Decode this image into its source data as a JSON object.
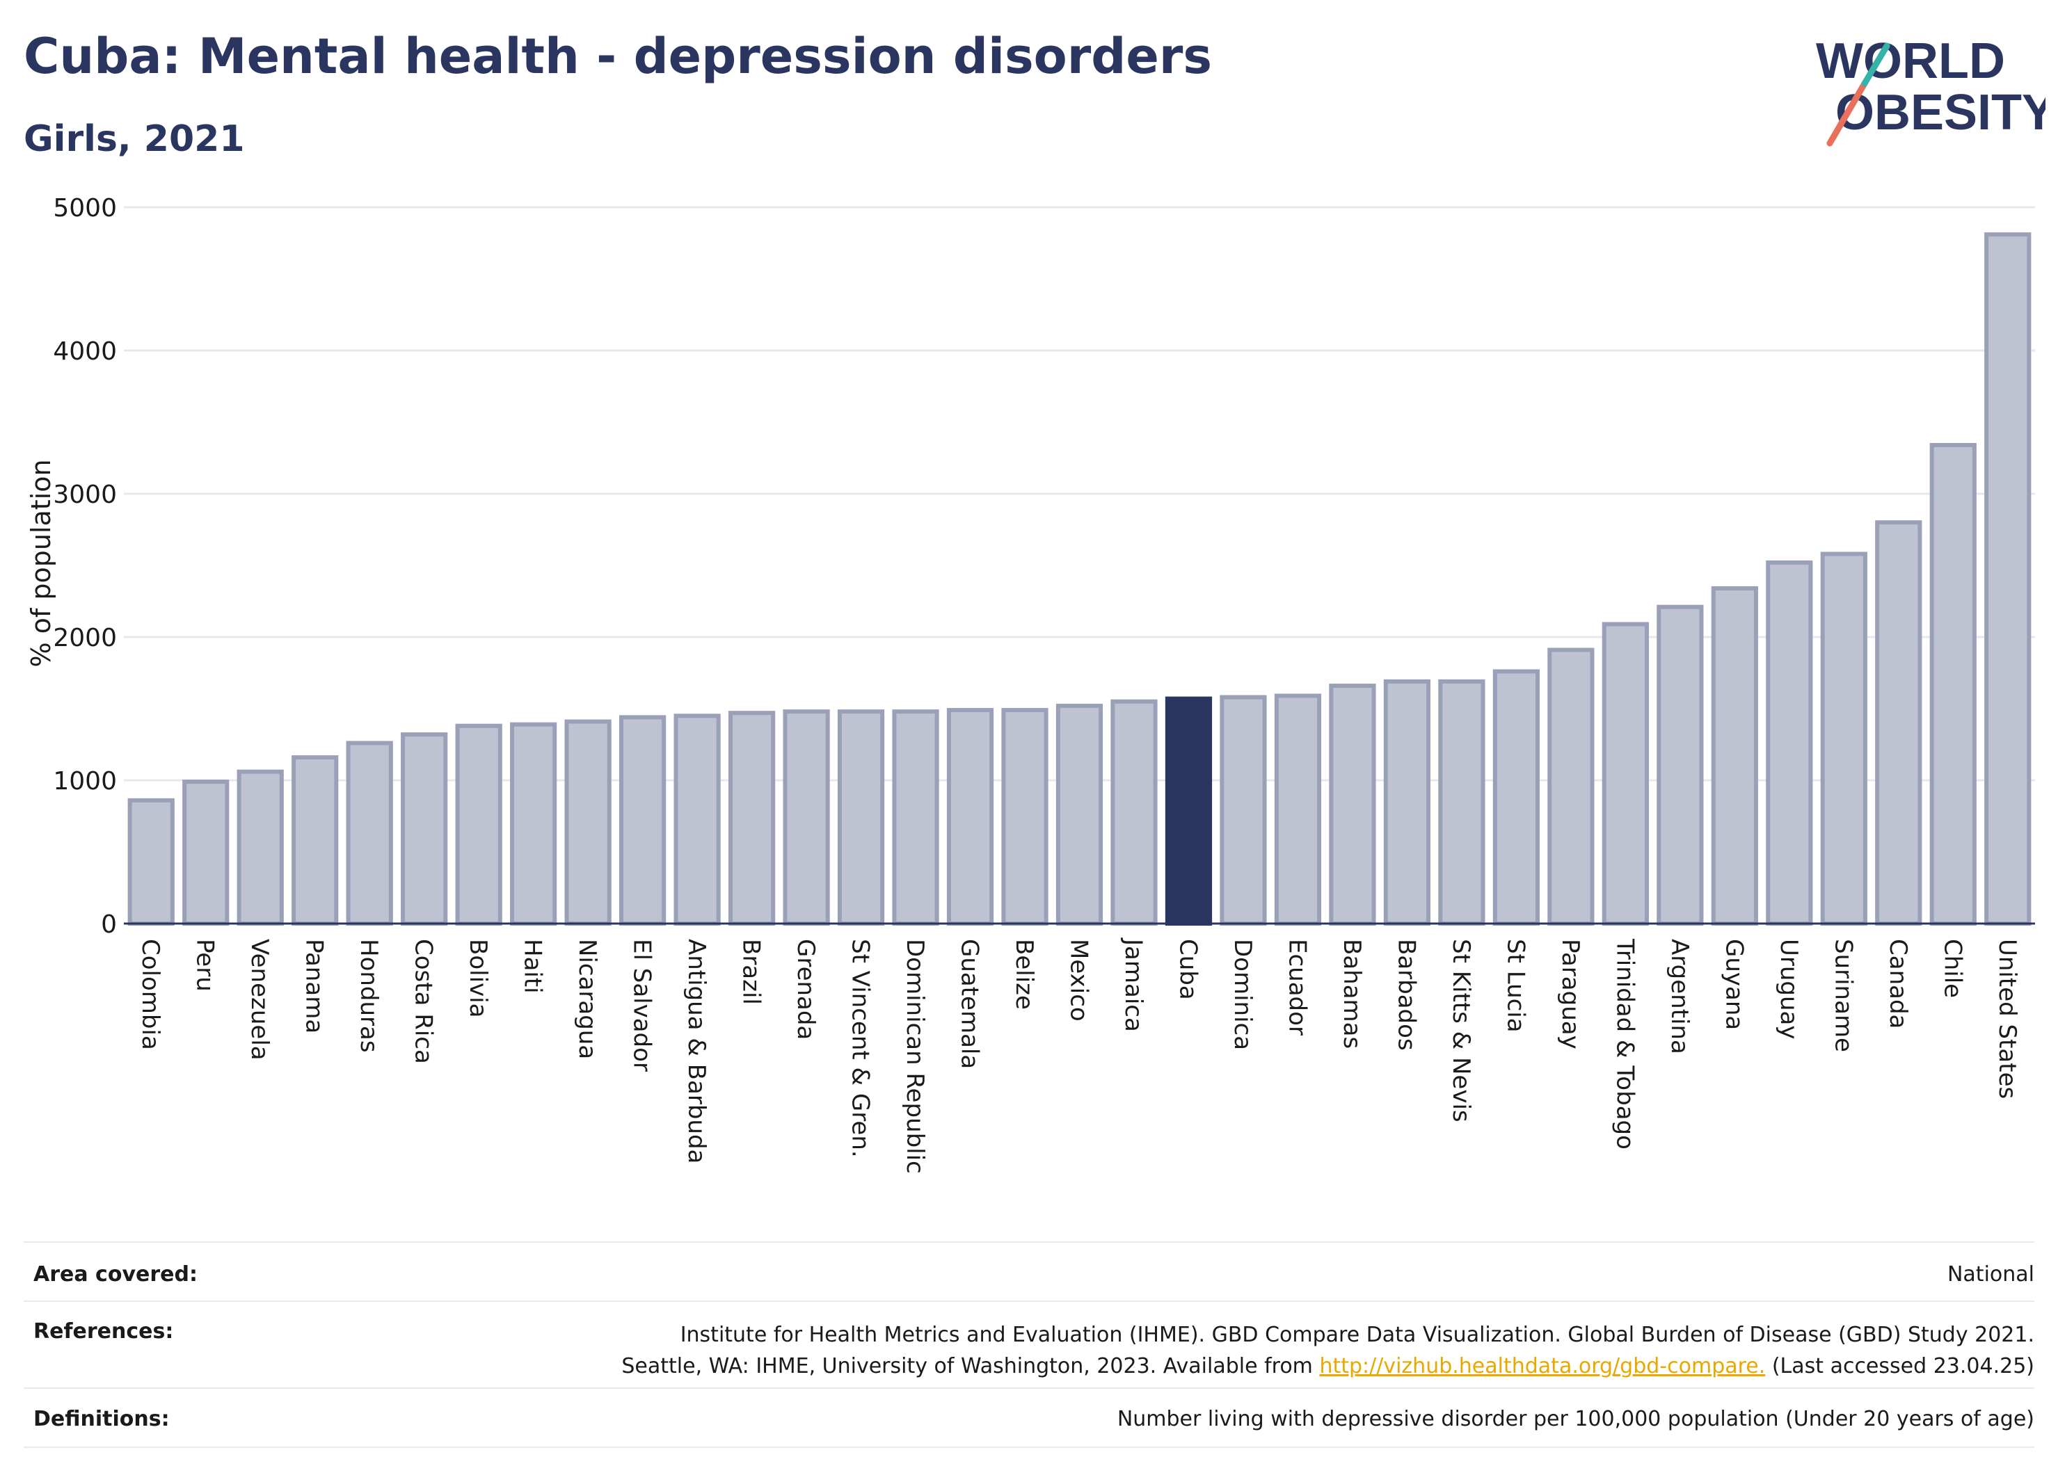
{
  "header": {
    "title": "Cuba: Mental health - depression disorders",
    "subtitle": "Girls, 2021"
  },
  "logo": {
    "line1": "WORLD",
    "line2": "OBESITY",
    "colors": {
      "text": "#2a3560",
      "slash_red": "#e8705d",
      "slash_teal": "#36b3a8"
    }
  },
  "chart_data": {
    "type": "bar",
    "ylabel": "% of population",
    "ylim": [
      0,
      5000
    ],
    "yticks": [
      0,
      1000,
      2000,
      3000,
      4000,
      5000
    ],
    "grid": true,
    "highlight": "Cuba",
    "colors": {
      "bar": "#bfc3d1",
      "bar_border": "#9aa0b8",
      "highlight": "#2a3560"
    },
    "categories": [
      "Colombia",
      "Peru",
      "Venezuela",
      "Panama",
      "Honduras",
      "Costa Rica",
      "Bolivia",
      "Haiti",
      "Nicaragua",
      "El Salvador",
      "Antigua & Barbuda",
      "Brazil",
      "Grenada",
      "St Vincent & Gren.",
      "Dominican Republic",
      "Guatemala",
      "Belize",
      "Mexico",
      "Jamaica",
      "Cuba",
      "Dominica",
      "Ecuador",
      "Bahamas",
      "Barbados",
      "St Kitts & Nevis",
      "St Lucia",
      "Paraguay",
      "Trinidad & Tobago",
      "Argentina",
      "Guyana",
      "Uruguay",
      "Suriname",
      "Canada",
      "Chile",
      "United States"
    ],
    "values": [
      860,
      990,
      1060,
      1160,
      1260,
      1320,
      1380,
      1390,
      1410,
      1440,
      1450,
      1470,
      1480,
      1480,
      1480,
      1490,
      1490,
      1520,
      1550,
      1570,
      1580,
      1590,
      1660,
      1690,
      1690,
      1760,
      1910,
      2090,
      2210,
      2340,
      2520,
      2580,
      2800,
      3340,
      4810
    ]
  },
  "footer": {
    "area_label": "Area covered:",
    "area_value": "National",
    "references_label": "References:",
    "references_line1": "Institute for Health Metrics and Evaluation (IHME). GBD Compare Data Visualization. Global Burden of Disease (GBD) Study 2021.",
    "references_line2_pre": "Seattle, WA: IHME, University of Washington, 2023. Available from ",
    "references_link": "http://vizhub.healthdata.org/gbd-compare.",
    "references_line2_post": " (Last accessed 23.04.25)",
    "definitions_label": "Definitions:",
    "definitions_value": "Number living with depressive disorder per 100,000 population (Under 20 years of age)"
  }
}
